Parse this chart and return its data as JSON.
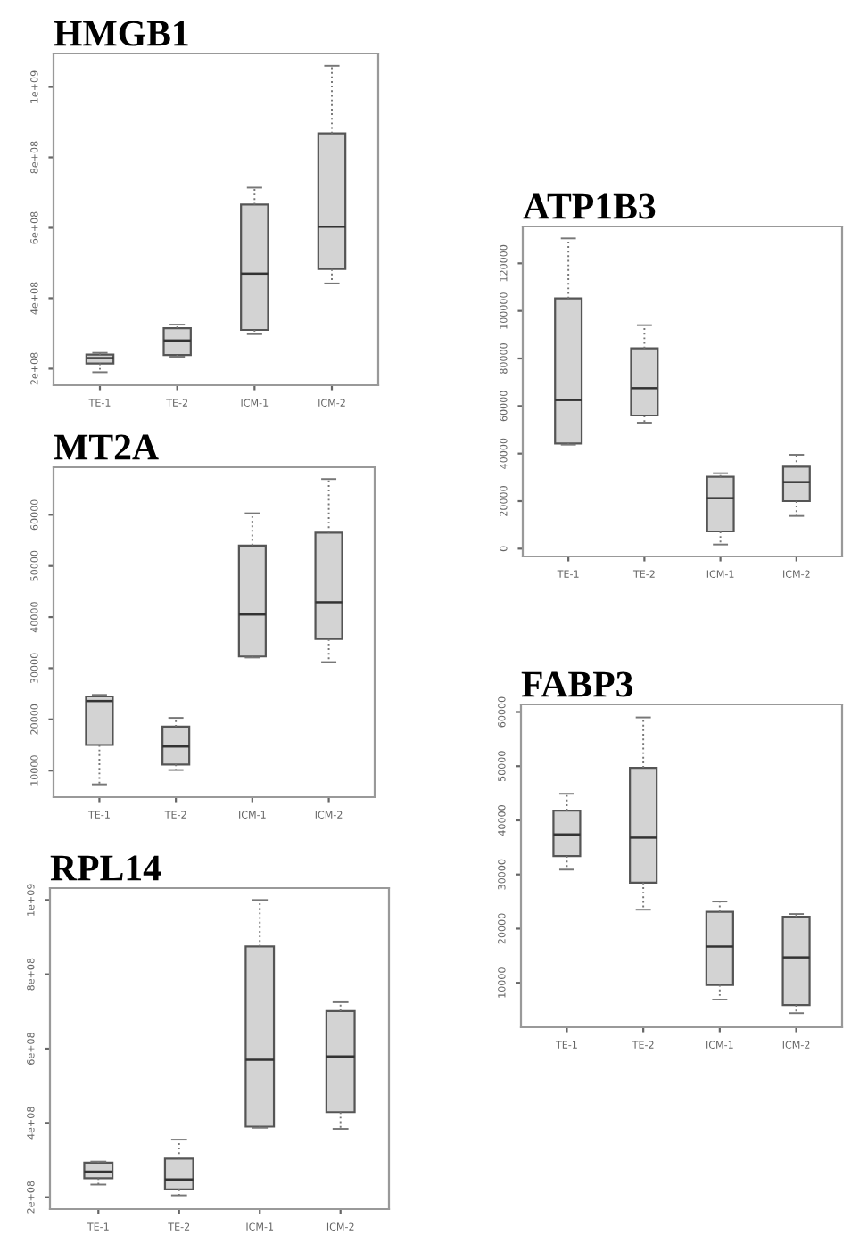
{
  "chart_data": [
    {
      "type": "box",
      "title": "HMGB1",
      "categories": [
        "TE-1",
        "TE-2",
        "ICM-1",
        "ICM-2"
      ],
      "color": "#d3d3d3",
      "ylim": [
        153000000,
        1095000000
      ],
      "yticks": [
        {
          "value": 200000000,
          "label": "2e+08"
        },
        {
          "value": 400000000,
          "label": "4e+08"
        },
        {
          "value": 600000000,
          "label": "6e+08"
        },
        {
          "value": 800000000,
          "label": "8e+08"
        },
        {
          "value": 1000000000,
          "label": "1e+09"
        }
      ],
      "boxes": [
        {
          "low": 190000000,
          "q1": 215000000,
          "median": 230000000,
          "q3": 240000000,
          "high": 245000000
        },
        {
          "low": 234000000,
          "q1": 239000000,
          "median": 280000000,
          "q3": 315000000,
          "high": 325000000
        },
        {
          "low": 298000000,
          "q1": 310000000,
          "median": 470000000,
          "q3": 666000000,
          "high": 714000000
        },
        {
          "low": 442000000,
          "q1": 483000000,
          "median": 603000000,
          "q3": 868000000,
          "high": 1060000000
        }
      ]
    },
    {
      "type": "box",
      "title": "ATP1B3",
      "categories": [
        "TE-1",
        "TE-2",
        "ICM-1",
        "ICM-2"
      ],
      "color": "#d3d3d3",
      "ylim": [
        -3250,
        135500
      ],
      "yticks": [
        0,
        20000,
        40000,
        60000,
        80000,
        100000,
        120000
      ],
      "boxes": [
        {
          "low": 43750,
          "q1": 44250,
          "median": 62500,
          "q3": 105250,
          "high": 130500
        },
        {
          "low": 53000,
          "q1": 56000,
          "median": 67500,
          "q3": 84250,
          "high": 94000
        },
        {
          "low": 1750,
          "q1": 7250,
          "median": 21250,
          "q3": 30250,
          "high": 31750
        },
        {
          "low": 13750,
          "q1": 20000,
          "median": 28000,
          "q3": 34500,
          "high": 39500
        }
      ]
    },
    {
      "type": "box",
      "title": "MT2A",
      "categories": [
        "TE-1",
        "TE-2",
        "ICM-1",
        "ICM-2"
      ],
      "color": "#d3d3d3",
      "ylim": [
        4800,
        69300
      ],
      "yticks": [
        10000,
        20000,
        30000,
        40000,
        50000,
        60000
      ],
      "boxes": [
        {
          "low": 7300,
          "q1": 15000,
          "median": 23600,
          "q3": 24500,
          "high": 24800
        },
        {
          "low": 10100,
          "q1": 11200,
          "median": 14700,
          "q3": 18600,
          "high": 20300
        },
        {
          "low": 32100,
          "q1": 32300,
          "median": 40500,
          "q3": 54000,
          "high": 60300
        },
        {
          "low": 31200,
          "q1": 35700,
          "median": 42900,
          "q3": 56500,
          "high": 67000
        }
      ]
    },
    {
      "type": "box",
      "title": "FABP3",
      "categories": [
        "TE-1",
        "TE-2",
        "ICM-1",
        "ICM-2"
      ],
      "color": "#d3d3d3",
      "ylim": [
        1800,
        61400
      ],
      "yticks": [
        10000,
        20000,
        30000,
        40000,
        50000,
        60000
      ],
      "boxes": [
        {
          "low": 30900,
          "q1": 33400,
          "median": 37400,
          "q3": 41800,
          "high": 44900
        },
        {
          "low": 23500,
          "q1": 28500,
          "median": 36800,
          "q3": 49700,
          "high": 59000
        },
        {
          "low": 6900,
          "q1": 9600,
          "median": 16700,
          "q3": 23100,
          "high": 25000
        },
        {
          "low": 4400,
          "q1": 5900,
          "median": 14700,
          "q3": 22200,
          "high": 22700
        }
      ]
    },
    {
      "type": "box",
      "title": "RPL14",
      "categories": [
        "TE-1",
        "TE-2",
        "ICM-1",
        "ICM-2"
      ],
      "color": "#d3d3d3",
      "ylim": [
        168000000,
        1032000000
      ],
      "yticks": [
        {
          "value": 200000000,
          "label": "2e+08"
        },
        {
          "value": 400000000,
          "label": "4e+08"
        },
        {
          "value": 600000000,
          "label": "6e+08"
        },
        {
          "value": 800000000,
          "label": "8e+08"
        },
        {
          "value": 1000000000,
          "label": "1e+09"
        }
      ],
      "boxes": [
        {
          "low": 234000000,
          "q1": 251000000,
          "median": 269000000,
          "q3": 293000000,
          "high": 296000000
        },
        {
          "low": 205000000,
          "q1": 221000000,
          "median": 248000000,
          "q3": 304000000,
          "high": 355000000
        },
        {
          "low": 387000000,
          "q1": 390000000,
          "median": 570000000,
          "q3": 875000000,
          "high": 1000000000
        },
        {
          "low": 384000000,
          "q1": 429000000,
          "median": 579000000,
          "q3": 701000000,
          "high": 725000000
        }
      ]
    }
  ]
}
